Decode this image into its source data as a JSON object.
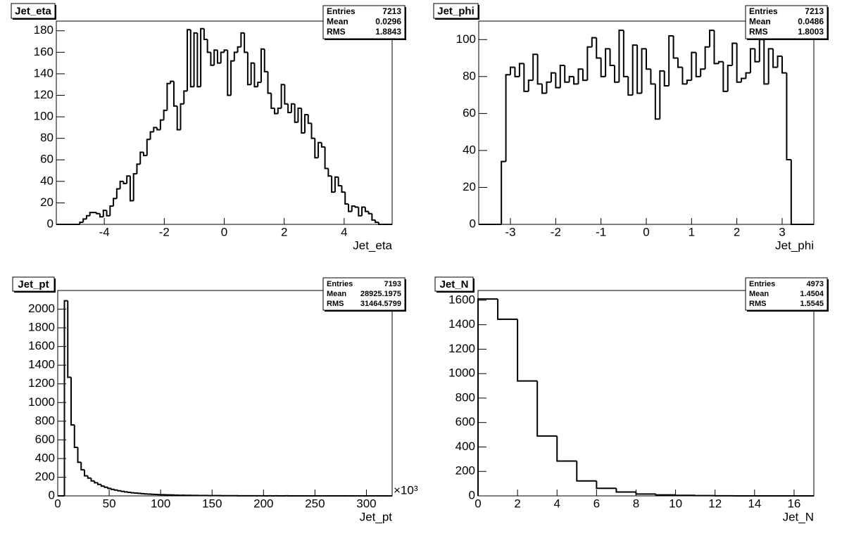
{
  "chart_data": [
    {
      "type": "histogram",
      "title": "Jet_eta",
      "xlabel": "Jet_eta",
      "color": "#000000",
      "bins": [
        -5.6,
        -5.488,
        -5.376,
        -5.264,
        -5.152,
        -5.04,
        -4.928,
        -4.816,
        -4.704,
        -4.592,
        -4.48,
        -4.368,
        -4.256,
        -4.144,
        -4.032,
        -3.92,
        -3.808,
        -3.696,
        -3.584,
        -3.472,
        -3.36,
        -3.248,
        -3.136,
        -3.024,
        -2.912,
        -2.8,
        -2.688,
        -2.576,
        -2.464,
        -2.352,
        -2.24,
        -2.128,
        -2.016,
        -1.904,
        -1.792,
        -1.68,
        -1.568,
        -1.456,
        -1.344,
        -1.232,
        -1.12,
        -1.008,
        -0.896,
        -0.784,
        -0.672,
        -0.56,
        -0.448,
        -0.336,
        -0.224,
        -0.112,
        0,
        0.112,
        0.224,
        0.336,
        0.448,
        0.56,
        0.672,
        0.784,
        0.896,
        1.008,
        1.12,
        1.232,
        1.344,
        1.456,
        1.568,
        1.68,
        1.792,
        1.904,
        2.016,
        2.128,
        2.24,
        2.352,
        2.464,
        2.576,
        2.688,
        2.8,
        2.912,
        3.024,
        3.136,
        3.248,
        3.36,
        3.472,
        3.584,
        3.696,
        3.808,
        3.92,
        4.032,
        4.144,
        4.256,
        4.368,
        4.48,
        4.592,
        4.704,
        4.816,
        4.928,
        5.04,
        5.152,
        5.264,
        5.376,
        5.488,
        5.6
      ],
      "values": [
        0,
        0,
        0,
        0,
        0,
        0,
        0,
        2,
        5,
        8,
        11,
        11,
        10,
        7,
        13,
        8,
        17,
        24,
        33,
        40,
        38,
        45,
        22,
        47,
        56,
        67,
        64,
        79,
        86,
        90,
        88,
        97,
        106,
        131,
        133,
        110,
        88,
        112,
        124,
        181,
        128,
        178,
        128,
        182,
        172,
        160,
        148,
        162,
        150,
        160,
        162,
        120,
        152,
        160,
        165,
        178,
        160,
        130,
        150,
        128,
        132,
        163,
        142,
        122,
        108,
        103,
        108,
        130,
        112,
        104,
        112,
        95,
        108,
        85,
        102,
        94,
        80,
        62,
        76,
        72,
        52,
        45,
        30,
        44,
        36,
        30,
        19,
        12,
        17,
        16,
        8,
        16,
        12,
        10,
        4,
        2,
        0,
        0,
        0,
        0
      ],
      "xlim": [
        -5.6,
        5.6
      ],
      "ylim": [
        0,
        189
      ],
      "xticks": [
        -4,
        -2,
        0,
        2,
        4
      ],
      "yticks": [
        0,
        20,
        40,
        60,
        80,
        100,
        120,
        140,
        160,
        180
      ],
      "stats": [
        {
          "label": "Entries",
          "value": 7213
        },
        {
          "label": "Mean",
          "value": 0.0296
        },
        {
          "label": "RMS",
          "value": 1.8843
        }
      ]
    },
    {
      "type": "histogram",
      "title": "Jet_phi",
      "xlabel": "Jet_phi",
      "color": "#000000",
      "bins": [
        -3.7,
        -3.6,
        -3.5,
        -3.4,
        -3.3,
        -3.2,
        -3.1,
        -3,
        -2.9,
        -2.8,
        -2.7,
        -2.6,
        -2.5,
        -2.4,
        -2.3,
        -2.2,
        -2.1,
        -2,
        -1.9,
        -1.8,
        -1.7,
        -1.6,
        -1.5,
        -1.4,
        -1.3,
        -1.2,
        -1.1,
        -1,
        -0.9,
        -0.8,
        -0.7,
        -0.6,
        -0.5,
        -0.4,
        -0.3,
        -0.2,
        -0.1,
        0,
        0.1,
        0.2,
        0.3,
        0.4,
        0.5,
        0.6,
        0.7,
        0.8,
        0.9,
        1,
        1.1,
        1.2,
        1.3,
        1.4,
        1.5,
        1.6,
        1.7,
        1.8,
        1.9,
        2,
        2.1,
        2.2,
        2.3,
        2.4,
        2.5,
        2.6,
        2.7,
        2.8,
        2.9,
        3,
        3.1,
        3.2,
        3.3,
        3.4,
        3.5,
        3.6,
        3.7
      ],
      "values": [
        0,
        0,
        0,
        0,
        0,
        34,
        81,
        85,
        80,
        87,
        72,
        78,
        92,
        76,
        71,
        77,
        82,
        74,
        86,
        77,
        80,
        76,
        84,
        78,
        96,
        101,
        90,
        80,
        95,
        86,
        77,
        105,
        80,
        70,
        97,
        71,
        95,
        84,
        76,
        57,
        83,
        75,
        102,
        90,
        85,
        76,
        78,
        93,
        80,
        84,
        96,
        105,
        87,
        88,
        72,
        86,
        98,
        77,
        79,
        82,
        95,
        88,
        100,
        76,
        95,
        85,
        91,
        82,
        35,
        0,
        0,
        0,
        0,
        0
      ],
      "xlim": [
        -3.7,
        3.7
      ],
      "ylim": [
        0,
        110
      ],
      "xticks": [
        -3,
        -2,
        -1,
        0,
        1,
        2,
        3
      ],
      "yticks": [
        0,
        20,
        40,
        60,
        80,
        100
      ],
      "stats": [
        {
          "label": "Entries",
          "value": 7213
        },
        {
          "label": "Mean",
          "value": 0.0486
        },
        {
          "label": "RMS",
          "value": 1.8003
        }
      ]
    },
    {
      "type": "histogram",
      "title": "Jet_pt",
      "xlabel": "Jet_pt",
      "x_multiplier": "×10³",
      "color": "#000000",
      "bins": [
        0,
        3250,
        6500,
        9750,
        13000,
        16250,
        19500,
        22750,
        26000,
        29250,
        32500,
        35750,
        39000,
        42250,
        45500,
        48750,
        52000,
        55250,
        58500,
        61750,
        65000,
        68250,
        71500,
        74750,
        78000,
        81250,
        84500,
        87750,
        91000,
        94250,
        97500,
        100750,
        104000,
        107250,
        110500,
        113750,
        117000,
        120250,
        123500,
        126750,
        130000,
        133250,
        136500,
        139750,
        143000,
        146250,
        149500,
        152750,
        156000,
        159250,
        162500,
        165750,
        169000,
        172250,
        175500,
        178750,
        182000,
        185250,
        188500,
        191750,
        195000,
        198250,
        201500,
        204750,
        208000,
        211250,
        214500,
        217750,
        221000,
        224250,
        227500,
        230750,
        234000,
        237250,
        240500,
        243750,
        247000,
        250250,
        253500,
        256750,
        260000,
        263250,
        266500,
        269750,
        273000,
        276250,
        279500,
        282750,
        286000,
        289250,
        292500,
        295750,
        299000,
        302250,
        305500,
        308750,
        312000,
        315250,
        318500,
        321750,
        325000
      ],
      "values": [
        0,
        0,
        2090,
        1270,
        760,
        520,
        360,
        280,
        215,
        190,
        160,
        140,
        122,
        105,
        92,
        80,
        70,
        62,
        55,
        48,
        42,
        38,
        33,
        30,
        27,
        24,
        21,
        19,
        17,
        15,
        13,
        12,
        11,
        10,
        9,
        8,
        7,
        7,
        6,
        6,
        5,
        5,
        4,
        4,
        4,
        3,
        3,
        3,
        3,
        2,
        2,
        2,
        2,
        2,
        1,
        1,
        1,
        1,
        1,
        1,
        1,
        1,
        0,
        1,
        0,
        1,
        0,
        0,
        1,
        0,
        0,
        0,
        0,
        0,
        0,
        0,
        0,
        0,
        0,
        0,
        0,
        0,
        0,
        0,
        0,
        0,
        0,
        0,
        0,
        0,
        0,
        0,
        0,
        0,
        0,
        0,
        0,
        0,
        0,
        0
      ],
      "xlim": [
        0,
        325000
      ],
      "ylim": [
        0,
        2200
      ],
      "xticks": [
        {
          "value": 0,
          "label": "0"
        },
        {
          "value": 50000,
          "label": "50"
        },
        {
          "value": 100000,
          "label": "100"
        },
        {
          "value": 150000,
          "label": "150"
        },
        {
          "value": 200000,
          "label": "200"
        },
        {
          "value": 250000,
          "label": "250"
        },
        {
          "value": 300000,
          "label": "300"
        }
      ],
      "yticks": [
        0,
        200,
        400,
        600,
        800,
        1000,
        1200,
        1400,
        1600,
        1800,
        2000
      ],
      "stats": [
        {
          "label": "Entries",
          "value": 7193
        },
        {
          "label": "Mean",
          "value": 28925.1975
        },
        {
          "label": "RMS",
          "value": 31464.5799
        }
      ]
    },
    {
      "type": "histogram",
      "title": "Jet_N",
      "xlabel": "Jet_N",
      "color": "#000000",
      "bins": [
        0,
        1,
        2,
        3,
        4,
        5,
        6,
        7,
        8,
        9,
        10,
        11,
        12,
        13,
        14,
        15,
        16,
        17
      ],
      "values": [
        1610,
        1445,
        940,
        490,
        285,
        122,
        62,
        32,
        15,
        8,
        4,
        2,
        1,
        0,
        0,
        0,
        0
      ],
      "xlim": [
        0,
        17
      ],
      "ylim": [
        0,
        1680
      ],
      "xticks": [
        0,
        2,
        4,
        6,
        8,
        10,
        12,
        14,
        16
      ],
      "yticks": [
        0,
        200,
        400,
        600,
        800,
        1000,
        1200,
        1400,
        1600
      ],
      "stats": [
        {
          "label": "Entries",
          "value": 4973
        },
        {
          "label": "Mean",
          "value": 1.4504
        },
        {
          "label": "RMS",
          "value": 1.5545
        }
      ]
    }
  ]
}
